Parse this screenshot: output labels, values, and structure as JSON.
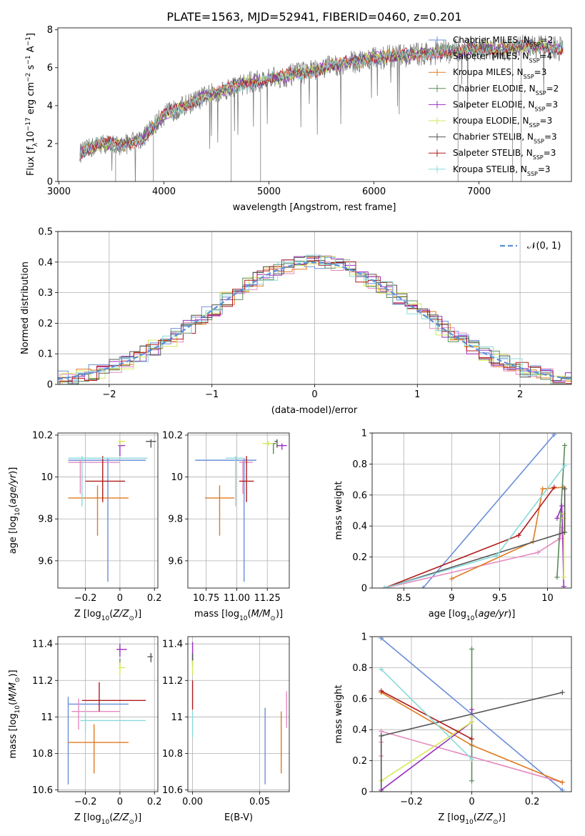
{
  "title": "PLATE=1563, MJD=52941, FIBERID=0460, z=0.201",
  "colors": {
    "Chabrier MILES": "#6a8fd9",
    "Salpeter MILES": "#e58ac0",
    "Kroupa MILES": "#e07a20",
    "Chabrier ELODIE": "#5a8a5a",
    "Salpeter ELODIE": "#9b2fc0",
    "Kroupa ELODIE": "#d6e85a",
    "Chabrier STELIB": "#555555",
    "Salpeter STELIB": "#b01c1c",
    "Kroupa STELIB": "#8adada"
  },
  "chart_data": [
    {
      "id": "spectrum",
      "type": "line",
      "title": "PLATE=1563, MJD=52941, FIBERID=0460, z=0.201",
      "xlabel": "wavelength [Angstrom, rest frame]",
      "ylabel": "Flux [f_λ 10^-17 erg cm^-2 s^-1 A^-1]",
      "xlim": [
        2990,
        7880
      ],
      "ylim": [
        0,
        8.1
      ],
      "xticks": [
        3000,
        4000,
        5000,
        6000,
        7000
      ],
      "yticks": [
        0,
        2,
        4,
        6,
        8
      ],
      "legend_position": "top-right",
      "legend": [
        {
          "prefix": "Chabrier MILES, N",
          "sub": "SSP",
          "suffix": "=2",
          "key": "Chabrier MILES"
        },
        {
          "prefix": "Salpeter MILES, N",
          "sub": "SSP",
          "suffix": "=4",
          "key": "Salpeter MILES"
        },
        {
          "prefix": "Kroupa MILES, N",
          "sub": "SSP",
          "suffix": "=3",
          "key": "Kroupa MILES"
        },
        {
          "prefix": "Chabrier ELODIE, N",
          "sub": "SSP",
          "suffix": "=2",
          "key": "Chabrier ELODIE"
        },
        {
          "prefix": "Salpeter ELODIE, N",
          "sub": "SSP",
          "suffix": "=3",
          "key": "Salpeter ELODIE"
        },
        {
          "prefix": "Kroupa ELODIE, N",
          "sub": "SSP",
          "suffix": "=3",
          "key": "Kroupa ELODIE"
        },
        {
          "prefix": "Chabrier STELIB, N",
          "sub": "SSP",
          "suffix": "=3",
          "key": "Chabrier STELIB"
        },
        {
          "prefix": "Salpeter STELIB, N",
          "sub": "SSP",
          "suffix": "=3",
          "key": "Salpeter STELIB"
        },
        {
          "prefix": "Kroupa STELIB, N",
          "sub": "SSP",
          "suffix": "=3",
          "key": "Kroupa STELIB"
        }
      ],
      "continuum": {
        "x": [
          3200,
          3400,
          3600,
          3800,
          4000,
          4200,
          4400,
          4600,
          4800,
          5000,
          5200,
          5400,
          5600,
          5800,
          6000,
          6200,
          6400,
          6600,
          6800,
          7000,
          7200,
          7400,
          7600,
          7800
        ],
        "y": [
          1.5,
          2.0,
          1.9,
          2.3,
          3.5,
          4.0,
          4.5,
          4.9,
          5.2,
          5.4,
          5.6,
          5.8,
          6.1,
          6.3,
          6.5,
          6.6,
          6.7,
          6.8,
          6.9,
          7.0,
          7.0,
          7.1,
          7.1,
          7.0
        ]
      }
    },
    {
      "id": "residuals",
      "type": "line",
      "xlabel": "(data-model)/error",
      "ylabel": "Normed distribution",
      "xlim": [
        -2.5,
        2.5
      ],
      "ylim": [
        0,
        0.5
      ],
      "xticks": [
        -2,
        -1,
        0,
        1,
        2
      ],
      "yticks": [
        0.0,
        0.1,
        0.2,
        0.3,
        0.4,
        0.5
      ],
      "legend_position": "top-right",
      "legend_label": "𝒩(0, 1)",
      "reference_curve": "normal(0,1)"
    },
    {
      "id": "age_vs_Z",
      "type": "scatter",
      "xlabel": "Z [log10(Z/Z⊙)]",
      "ylabel": "age [log10(age/yr)]",
      "xlim": [
        -0.36,
        0.22
      ],
      "ylim": [
        9.47,
        10.21
      ],
      "xticks": [
        -0.2,
        0.0,
        0.2
      ],
      "yticks": [
        9.6,
        9.8,
        10.0,
        10.2
      ],
      "points": [
        {
          "key": "Chabrier MILES",
          "x": -0.07,
          "y": 10.08,
          "xerr": [
            0.23,
            0.22
          ],
          "yerr": [
            0.58,
            0.01
          ]
        },
        {
          "key": "Salpeter MILES",
          "x": -0.23,
          "y": 10.07,
          "xerr": [
            0.07,
            0.23
          ],
          "yerr": [
            0.15,
            0.01
          ]
        },
        {
          "key": "Kroupa MILES",
          "x": -0.13,
          "y": 9.9,
          "xerr": [
            0.17,
            0.18
          ],
          "yerr": [
            0.18,
            0.06
          ]
        },
        {
          "key": "Chabrier ELODIE",
          "x": 0.0,
          "y": 10.16,
          "xerr": [
            0.0,
            0.0
          ],
          "yerr": [
            0.0,
            0.0
          ]
        },
        {
          "key": "Salpeter ELODIE",
          "x": 0.0,
          "y": 10.15,
          "xerr": [
            0.01,
            0.03
          ],
          "yerr": [
            0.05,
            0.02
          ]
        },
        {
          "key": "Kroupa ELODIE",
          "x": 0.0,
          "y": 10.17,
          "xerr": [
            0.01,
            0.03
          ],
          "yerr": [
            0.02,
            0.01
          ]
        },
        {
          "key": "Chabrier STELIB",
          "x": 0.18,
          "y": 10.17,
          "xerr": [
            0.03,
            0.03
          ],
          "yerr": [
            0.03,
            0.01
          ]
        },
        {
          "key": "Salpeter STELIB",
          "x": -0.1,
          "y": 9.98,
          "xerr": [
            0.1,
            0.13
          ],
          "yerr": [
            0.1,
            0.12
          ]
        },
        {
          "key": "Kroupa STELIB",
          "x": -0.22,
          "y": 10.09,
          "xerr": [
            0.08,
            0.38
          ],
          "yerr": [
            0.23,
            0.01
          ]
        }
      ]
    },
    {
      "id": "age_vs_mass",
      "type": "scatter",
      "xlabel": "mass [log10(M/M⊙)]",
      "ylabel": "",
      "xlim": [
        10.6,
        11.43
      ],
      "ylim": [
        9.47,
        10.21
      ],
      "xticks": [
        10.75,
        11.0,
        11.25
      ],
      "xtick_labels": [
        "10.75",
        "11.00",
        "11.25"
      ],
      "yticks": [
        9.6,
        9.8,
        10.0,
        10.2
      ],
      "points": [
        {
          "key": "Chabrier MILES",
          "x": 11.06,
          "y": 10.08,
          "xerr": [
            0.4,
            0.1
          ],
          "yerr": [
            0.58,
            0.01
          ]
        },
        {
          "key": "Salpeter MILES",
          "x": 11.05,
          "y": 10.07,
          "xerr": [
            0.03,
            0.08
          ],
          "yerr": [
            0.15,
            0.01
          ]
        },
        {
          "key": "Kroupa MILES",
          "x": 10.86,
          "y": 9.9,
          "xerr": [
            0.12,
            0.12
          ],
          "yerr": [
            0.18,
            0.06
          ]
        },
        {
          "key": "Chabrier ELODIE",
          "x": 11.3,
          "y": 10.16,
          "xerr": [
            0.02,
            0.02
          ],
          "yerr": [
            0.05,
            0.0
          ]
        },
        {
          "key": "Salpeter ELODIE",
          "x": 11.37,
          "y": 10.15,
          "xerr": [
            0.04,
            0.04
          ],
          "yerr": [
            0.02,
            0.01
          ]
        },
        {
          "key": "Kroupa ELODIE",
          "x": 11.26,
          "y": 10.16,
          "xerr": [
            0.05,
            0.04
          ],
          "yerr": [
            0.01,
            0.01
          ]
        },
        {
          "key": "Chabrier STELIB",
          "x": 11.33,
          "y": 10.17,
          "xerr": [
            0.02,
            0.0
          ],
          "yerr": [
            0.03,
            0.01
          ]
        },
        {
          "key": "Salpeter STELIB",
          "x": 11.08,
          "y": 9.98,
          "xerr": [
            0.06,
            0.06
          ],
          "yerr": [
            0.1,
            0.12
          ]
        },
        {
          "key": "Kroupa STELIB",
          "x": 10.99,
          "y": 10.09,
          "xerr": [
            0.08,
            0.07
          ],
          "yerr": [
            0.23,
            0.01
          ]
        }
      ]
    },
    {
      "id": "massweight_vs_age",
      "type": "line",
      "xlabel": "age [log10(age/yr)]",
      "ylabel": "mass weight",
      "xlim": [
        8.17,
        10.25
      ],
      "ylim": [
        0,
        1.0
      ],
      "xticks": [
        8.5,
        9.0,
        9.5,
        10.0
      ],
      "yticks": [
        0.0,
        0.2,
        0.4,
        0.6,
        0.8,
        1.0
      ],
      "series": [
        {
          "key": "Chabrier MILES",
          "x": [
            8.7,
            10.07
          ],
          "y": [
            0.0,
            0.99
          ]
        },
        {
          "key": "Salpeter MILES",
          "x": [
            8.3,
            9.9,
            10.13,
            10.15
          ],
          "y": [
            0.0,
            0.23,
            0.32,
            0.39
          ]
        },
        {
          "key": "Kroupa MILES",
          "x": [
            9.0,
            9.85,
            9.95,
            10.17
          ],
          "y": [
            0.06,
            0.3,
            0.64,
            0.65
          ]
        },
        {
          "key": "Chabrier ELODIE",
          "x": [
            10.1,
            10.18
          ],
          "y": [
            0.07,
            0.92
          ]
        },
        {
          "key": "Salpeter ELODIE",
          "x": [
            10.1,
            10.15,
            10.17
          ],
          "y": [
            0.45,
            0.53,
            0.01
          ]
        },
        {
          "key": "Kroupa ELODIE",
          "x": [
            10.17,
            10.17,
            10.17
          ],
          "y": [
            0.07,
            0.45,
            0.48
          ]
        },
        {
          "key": "Chabrier STELIB",
          "x": [
            8.3,
            10.18,
            10.18
          ],
          "y": [
            0.0,
            0.36,
            0.64
          ]
        },
        {
          "key": "Salpeter STELIB",
          "x": [
            8.3,
            9.7,
            10.07
          ],
          "y": [
            0.0,
            0.34,
            0.65
          ]
        },
        {
          "key": "Kroupa STELIB",
          "x": [
            8.3,
            9.47,
            10.18
          ],
          "y": [
            0.0,
            0.21,
            0.79
          ]
        }
      ]
    },
    {
      "id": "mass_vs_Z",
      "type": "scatter",
      "xlabel": "Z [log10(Z/Z⊙)]",
      "ylabel": "mass [log10(M/M⊙)]",
      "xlim": [
        -0.36,
        0.22
      ],
      "ylim": [
        10.59,
        11.44
      ],
      "xticks": [
        -0.2,
        0.0,
        0.2
      ],
      "yticks": [
        10.6,
        10.8,
        11.0,
        11.2,
        11.4
      ],
      "points": [
        {
          "key": "Chabrier MILES",
          "x": -0.3,
          "y": 11.07,
          "xerr": [
            0.0,
            0.35
          ],
          "yerr": [
            0.44,
            0.04
          ]
        },
        {
          "key": "Salpeter MILES",
          "x": -0.24,
          "y": 11.03,
          "xerr": [
            0.04,
            0.24
          ],
          "yerr": [
            0.1,
            0.07
          ]
        },
        {
          "key": "Kroupa MILES",
          "x": -0.15,
          "y": 10.86,
          "xerr": [
            0.15,
            0.2
          ],
          "yerr": [
            0.17,
            0.1
          ]
        },
        {
          "key": "Chabrier ELODIE",
          "x": 0.0,
          "y": 11.3,
          "xerr": [
            0.0,
            0.0
          ],
          "yerr": [
            0.02,
            0.02
          ]
        },
        {
          "key": "Salpeter ELODIE",
          "x": 0.0,
          "y": 11.37,
          "xerr": [
            0.02,
            0.04
          ],
          "yerr": [
            0.04,
            0.03
          ]
        },
        {
          "key": "Kroupa ELODIE",
          "x": 0.0,
          "y": 11.27,
          "xerr": [
            0.01,
            0.03
          ],
          "yerr": [
            0.04,
            0.03
          ]
        },
        {
          "key": "Chabrier STELIB",
          "x": 0.18,
          "y": 11.33,
          "xerr": [
            0.02,
            0.01
          ],
          "yerr": [
            0.03,
            0.02
          ]
        },
        {
          "key": "Salpeter STELIB",
          "x": -0.12,
          "y": 11.09,
          "xerr": [
            0.1,
            0.27
          ],
          "yerr": [
            0.06,
            0.1
          ]
        },
        {
          "key": "Kroupa STELIB",
          "x": -0.2,
          "y": 10.98,
          "xerr": [
            0.03,
            0.35
          ],
          "yerr": [
            0.06,
            0.06
          ]
        }
      ]
    },
    {
      "id": "mass_vs_ebv",
      "type": "scatter",
      "xlabel": "E(B-V)",
      "ylabel": "",
      "xlim": [
        -0.0035,
        0.072
      ],
      "ylim": [
        10.59,
        11.44
      ],
      "xticks": [
        0.0,
        0.05
      ],
      "xtick_labels": [
        "0.00",
        "0.05"
      ],
      "yticks": [
        10.6,
        10.8,
        11.0,
        11.2,
        11.4
      ],
      "points": [
        {
          "key": "Chabrier MILES",
          "x": 0.054,
          "y": 10.84,
          "xerr": [
            0,
            0
          ],
          "yerr": [
            0.21,
            0.21
          ]
        },
        {
          "key": "Salpeter MILES",
          "x": 0.07,
          "y": 11.04,
          "xerr": [
            0,
            0
          ],
          "yerr": [
            0.1,
            0.1
          ]
        },
        {
          "key": "Kroupa MILES",
          "x": 0.066,
          "y": 10.86,
          "xerr": [
            0,
            0
          ],
          "yerr": [
            0.17,
            0.17
          ]
        },
        {
          "key": "Chabrier ELODIE",
          "x": 0.0,
          "y": 11.3,
          "xerr": [
            0,
            0
          ],
          "yerr": [
            0.02,
            0.02
          ]
        },
        {
          "key": "Salpeter ELODIE",
          "x": 0.0,
          "y": 11.36,
          "xerr": [
            0,
            0
          ],
          "yerr": [
            0.05,
            0.05
          ]
        },
        {
          "key": "Kroupa ELODIE",
          "x": 0.0,
          "y": 11.27,
          "xerr": [
            0,
            0
          ],
          "yerr": [
            0.04,
            0.04
          ]
        },
        {
          "key": "Chabrier STELIB",
          "x": 0.0,
          "y": 11.33,
          "xerr": [
            0,
            0
          ],
          "yerr": [
            0.02,
            0.02
          ]
        },
        {
          "key": "Salpeter STELIB",
          "x": 0.0,
          "y": 11.12,
          "xerr": [
            0,
            0
          ],
          "yerr": [
            0.08,
            0.08
          ]
        },
        {
          "key": "Kroupa STELIB",
          "x": 0.0,
          "y": 10.96,
          "xerr": [
            0,
            0
          ],
          "yerr": [
            0.07,
            0.07
          ]
        }
      ]
    },
    {
      "id": "massweight_vs_Z",
      "type": "line",
      "xlabel": "Z [log10(Z/Z⊙)]",
      "ylabel": "mass weight",
      "xlim": [
        -0.33,
        0.33
      ],
      "ylim": [
        0,
        1.0
      ],
      "xticks": [
        -0.2,
        0.0,
        0.2
      ],
      "yticks": [
        0.0,
        0.2,
        0.4,
        0.6,
        0.8,
        1.0
      ],
      "series": [
        {
          "key": "Chabrier MILES",
          "x": [
            -0.3,
            0.3
          ],
          "y": [
            0.99,
            0.01
          ]
        },
        {
          "key": "Salpeter MILES",
          "x": [
            -0.3,
            -0.3,
            -0.3,
            0.3
          ],
          "y": [
            0.23,
            0.32,
            0.39,
            0.06
          ]
        },
        {
          "key": "Kroupa MILES",
          "x": [
            -0.3,
            0.0,
            0.3
          ],
          "y": [
            0.64,
            0.3,
            0.06
          ]
        },
        {
          "key": "Chabrier ELODIE",
          "x": [
            0.0,
            0.0
          ],
          "y": [
            0.07,
            0.92
          ]
        },
        {
          "key": "Salpeter ELODIE",
          "x": [
            -0.3,
            0.0,
            0.0
          ],
          "y": [
            0.01,
            0.45,
            0.53
          ]
        },
        {
          "key": "Kroupa ELODIE",
          "x": [
            -0.3,
            0.0,
            0.0
          ],
          "y": [
            0.07,
            0.45,
            0.48
          ]
        },
        {
          "key": "Chabrier STELIB",
          "x": [
            -0.3,
            -0.3,
            0.3
          ],
          "y": [
            0.0,
            0.36,
            0.64
          ]
        },
        {
          "key": "Salpeter STELIB",
          "x": [
            -0.3,
            0.0
          ],
          "y": [
            0.65,
            0.34
          ]
        },
        {
          "key": "Kroupa STELIB",
          "x": [
            -0.3,
            0.0
          ],
          "y": [
            0.79,
            0.21
          ]
        }
      ]
    }
  ]
}
